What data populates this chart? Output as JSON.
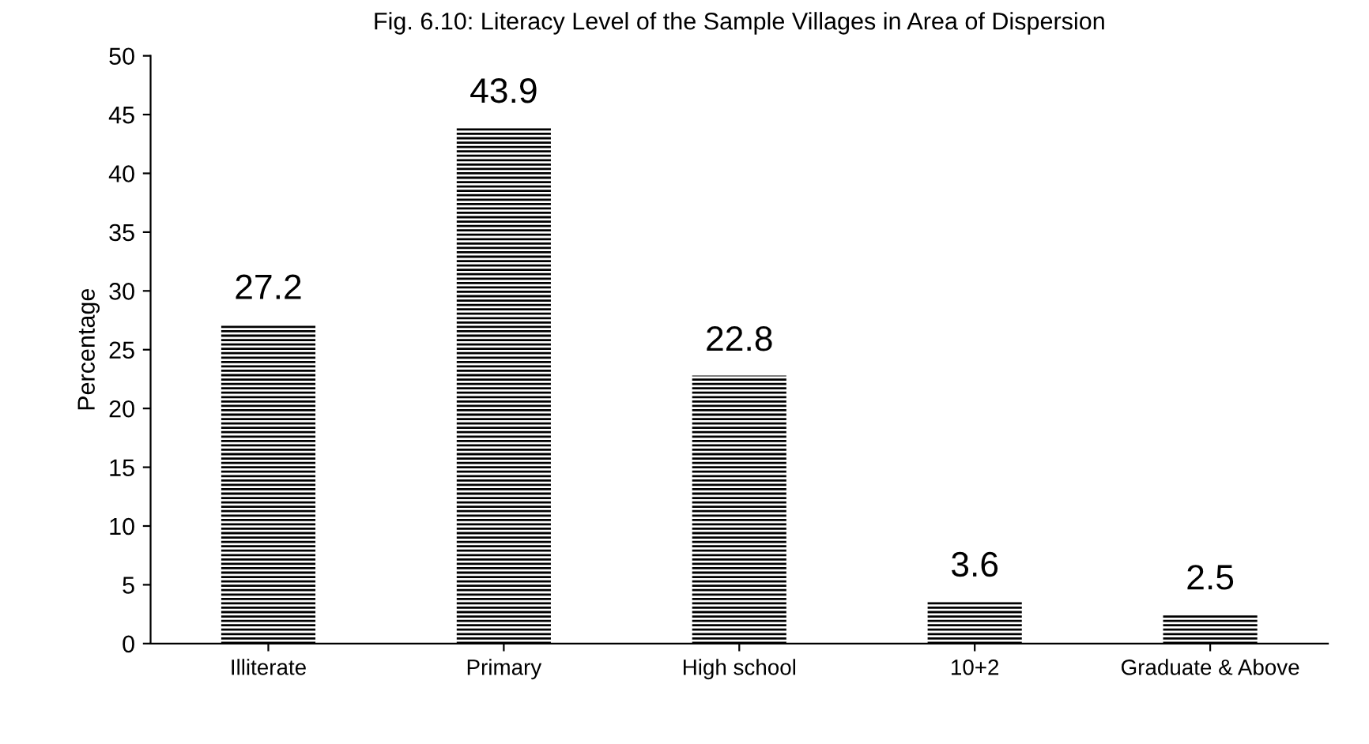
{
  "chart_data": {
    "type": "bar",
    "title": "Fig. 6.10: Literacy Level of the Sample Villages in Area of Dispersion",
    "ylabel": "Percentage",
    "categories": [
      "Illiterate",
      "Primary",
      "High school",
      "10+2",
      "Graduate & Above"
    ],
    "values": [
      27.2,
      43.9,
      22.8,
      3.6,
      2.5
    ],
    "color": "#000000",
    "ylim": [
      0,
      50
    ],
    "yticks": [
      0,
      5,
      10,
      15,
      20,
      25,
      30,
      35,
      40,
      45,
      50
    ],
    "grid": false,
    "data_labels": true
  }
}
